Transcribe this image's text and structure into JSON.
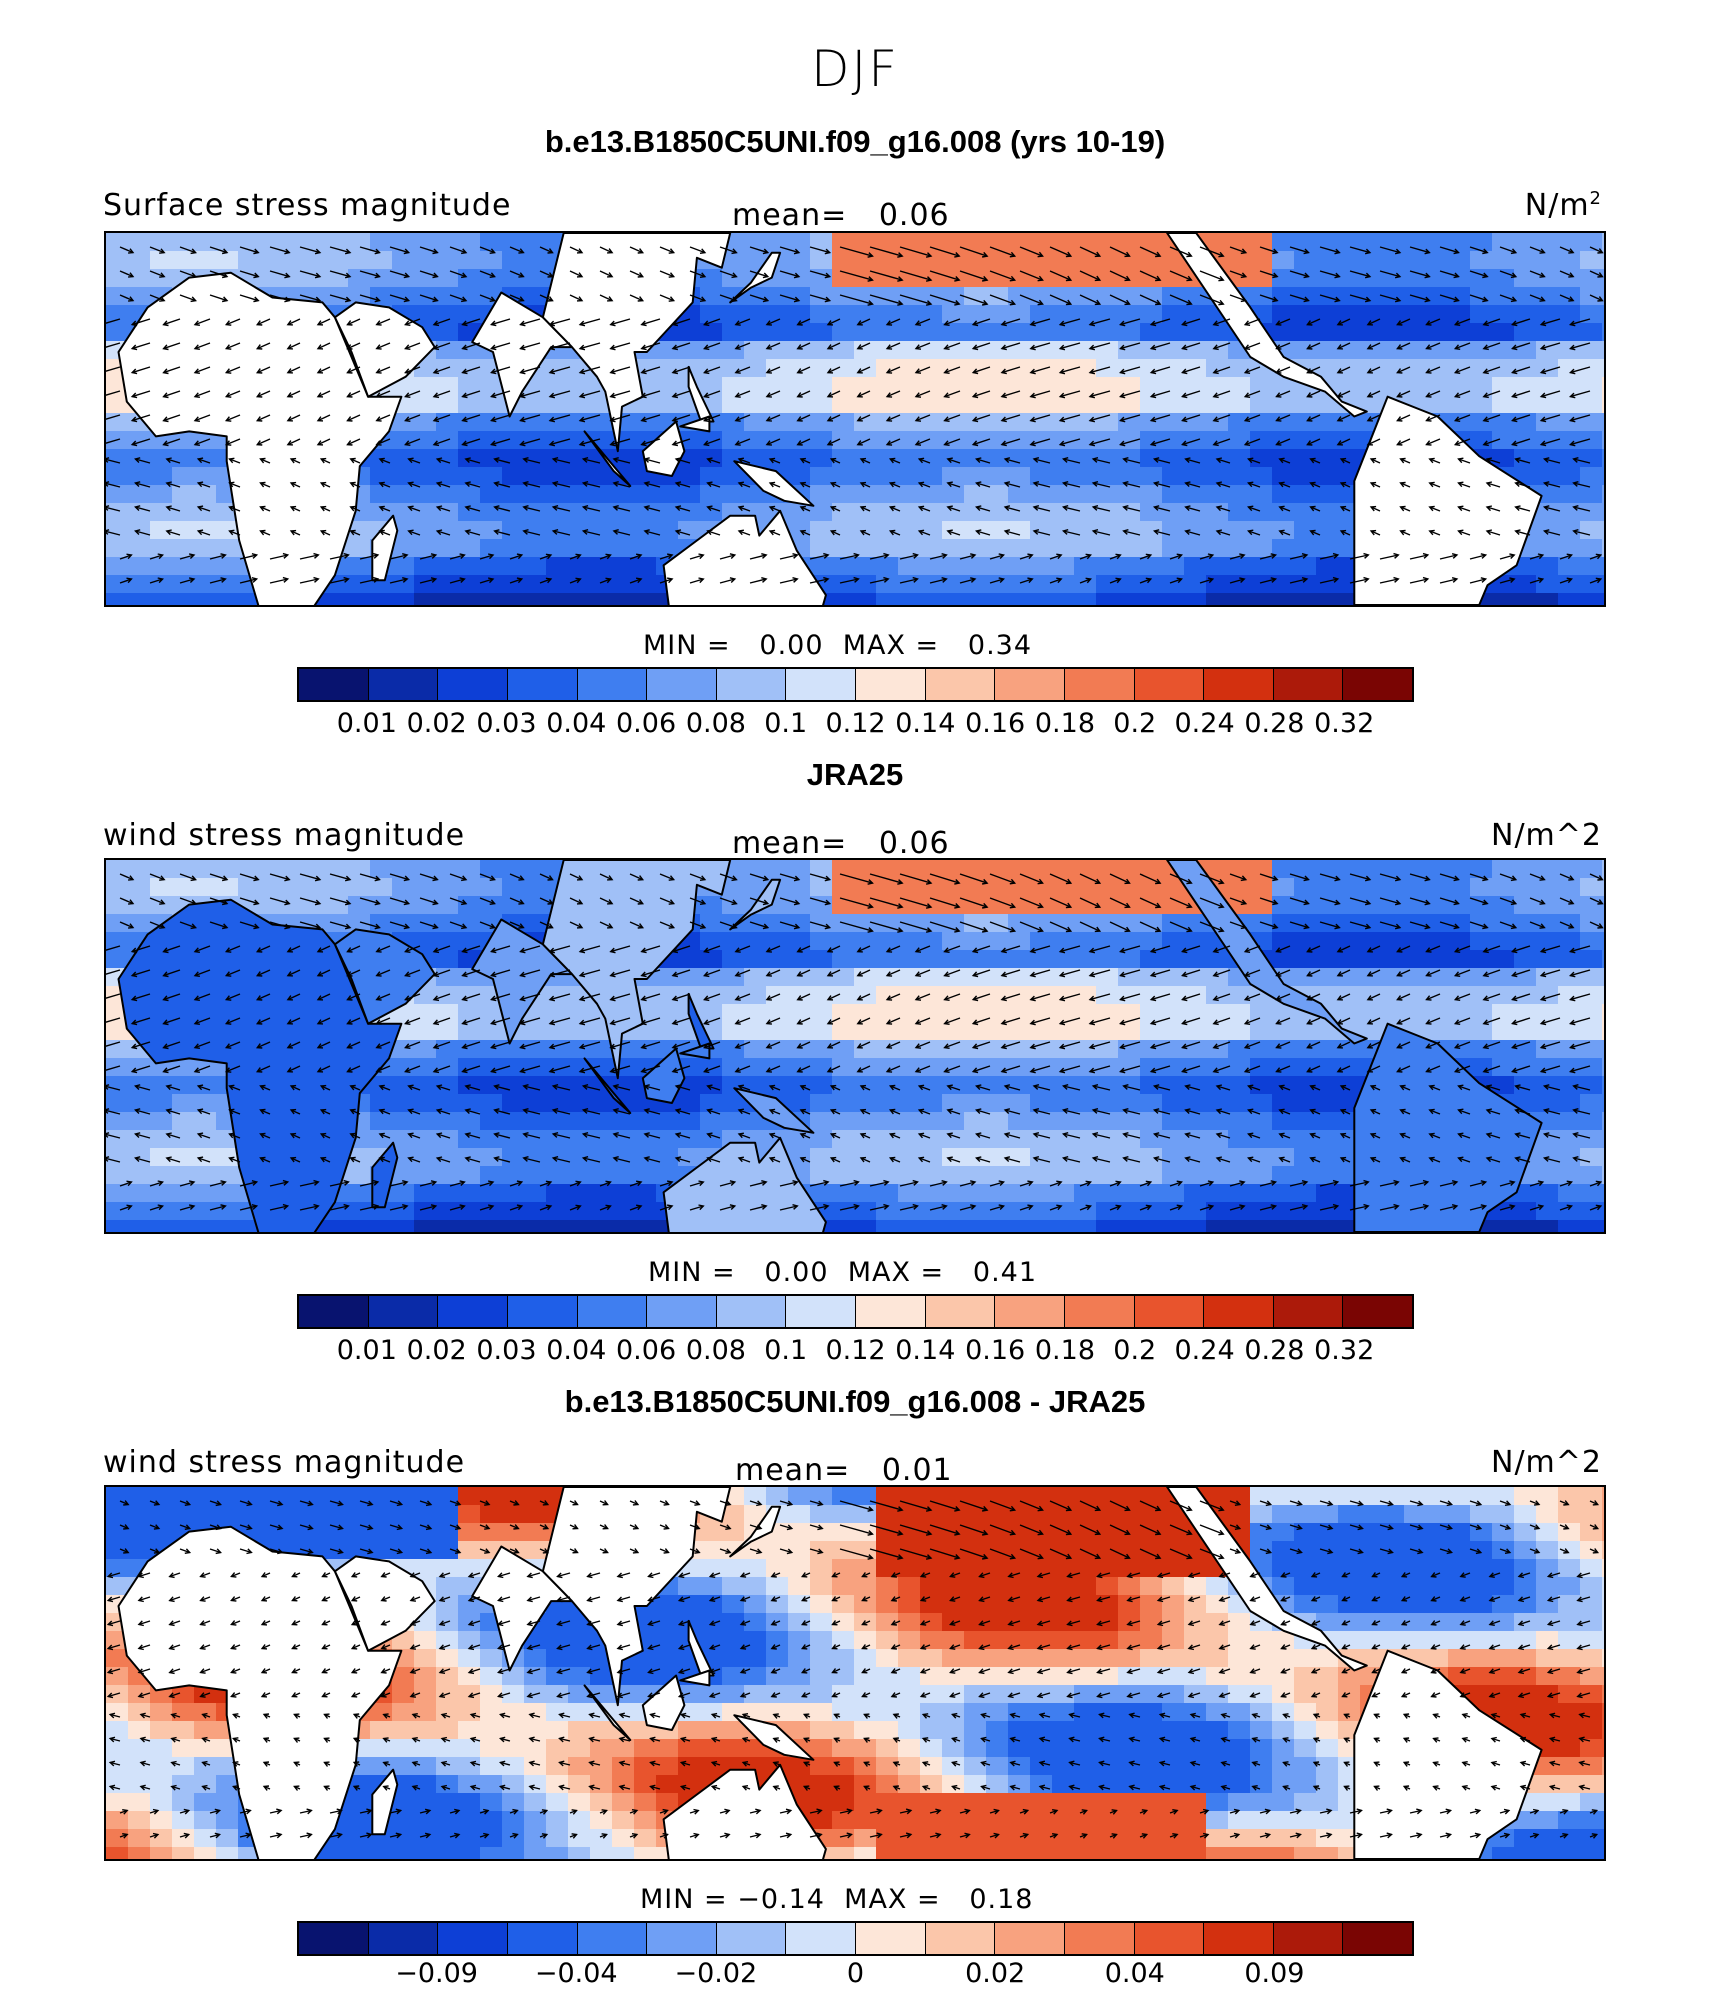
{
  "figure": {
    "season": "DJF"
  },
  "colors": {
    "seq": [
      "#08136f",
      "#0a2ba8",
      "#0d3fd6",
      "#1f5fe8",
      "#3f7ef0",
      "#6f9ff5",
      "#a0c0f7",
      "#d2e2fa",
      "#fde6d8",
      "#fbc6aa",
      "#f8a27f",
      "#f27b53",
      "#e8542d",
      "#d3300f",
      "#ac1a0a",
      "#7a0503"
    ],
    "land": "#ffffff",
    "coast": "#000000"
  },
  "panels": [
    {
      "title": "b.e13.B1850C5UNI.f09_g16.008 (yrs 10-19)",
      "left_label": "Surface stress magnitude",
      "mean_text": "mean=   0.06",
      "units_base": "N/m",
      "units_sup": "2",
      "minmax_text": "MIN =   0.00  MAX =   0.34",
      "colorbar_ticks": [
        "0.01",
        "0.02",
        "0.03",
        "0.04",
        "0.06",
        "0.08",
        "0.1",
        "0.12",
        "0.14",
        "0.16",
        "0.18",
        "0.2",
        "0.24",
        "0.28",
        "0.32"
      ],
      "field": "model"
    },
    {
      "title": "JRA25",
      "left_label": "wind stress magnitude",
      "mean_text": "mean=   0.06",
      "units_base": "N/m^2",
      "units_sup": "",
      "minmax_text": "MIN =   0.00  MAX =   0.41",
      "colorbar_ticks": [
        "0.01",
        "0.02",
        "0.03",
        "0.04",
        "0.06",
        "0.08",
        "0.1",
        "0.12",
        "0.14",
        "0.16",
        "0.18",
        "0.2",
        "0.24",
        "0.28",
        "0.32"
      ],
      "field": "obs"
    },
    {
      "title": "b.e13.B1850C5UNI.f09_g16.008 - JRA25",
      "left_label": "wind stress magnitude",
      "mean_text": "mean=   0.01",
      "units_base": "N/m^2",
      "units_sup": "",
      "minmax_text": "MIN = −0.14  MAX =   0.18",
      "colorbar_ticks": [
        "−0.09",
        "−0.04",
        "−0.02",
        "0",
        "0.02",
        "0.04",
        "0.09"
      ],
      "field": "diff"
    }
  ]
}
